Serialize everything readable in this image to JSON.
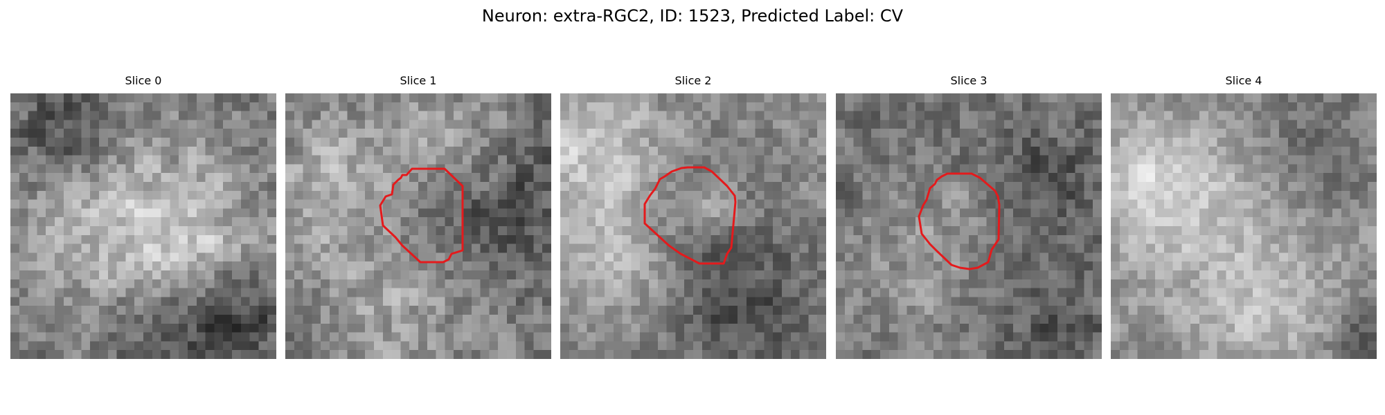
{
  "figure": {
    "title": "Neuron: extra-RGC2, ID: 1523, Predicted Label: CV"
  },
  "colors": {
    "background": "#ffffff",
    "contour": "#e41a1c",
    "colormap": "grayscale"
  },
  "slices": [
    {
      "title": "Slice 0",
      "has_contour": false
    },
    {
      "title": "Slice 1",
      "has_contour": true
    },
    {
      "title": "Slice 2",
      "has_contour": true
    },
    {
      "title": "Slice 3",
      "has_contour": true
    },
    {
      "title": "Slice 4",
      "has_contour": false
    }
  ]
}
